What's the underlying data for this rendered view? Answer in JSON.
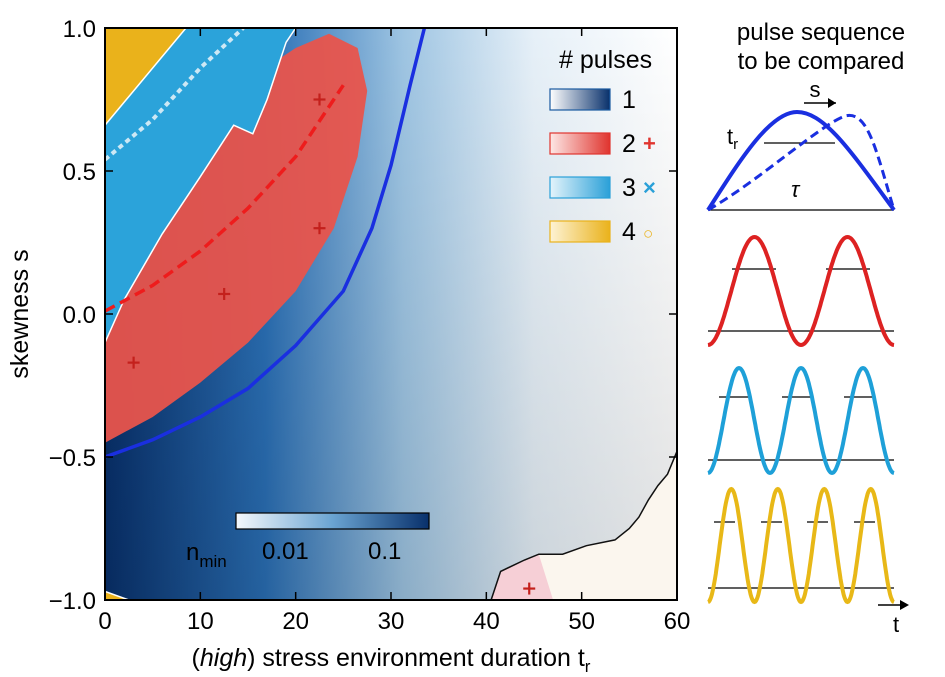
{
  "chart_data": {
    "type": "heatmap",
    "xlabel_prefix": "(",
    "xlabel_italic": "high",
    "xlabel_suffix": ") stress environment duration t",
    "xlabel_subscript": "r",
    "ylabel": "skewness s",
    "xlim": [
      0,
      60
    ],
    "ylim": [
      -1.0,
      1.0
    ],
    "xticks": [
      0,
      10,
      20,
      30,
      40,
      50,
      60
    ],
    "xtick_labels": [
      "0",
      "10",
      "20",
      "30",
      "40",
      "50",
      "60"
    ],
    "yticks": [
      1.0,
      0.5,
      0.0,
      -0.5,
      -1.0
    ],
    "ytick_labels": [
      "1.0",
      "0.5",
      "0.0",
      "−0.5",
      "−1.0"
    ],
    "legend": {
      "title": "# pulses",
      "position": "top-right",
      "entries": [
        {
          "label": "1",
          "color": "#1a5aa0",
          "marker": ""
        },
        {
          "label": "2",
          "color": "#e0342e",
          "marker": "+"
        },
        {
          "label": "3",
          "color": "#2aa0d8",
          "marker": "×"
        },
        {
          "label": "4",
          "color": "#eab21b",
          "marker": "○"
        }
      ]
    },
    "colorbar": {
      "label_main": "n",
      "label_sub": "min",
      "ticks": [
        "0.01",
        "0.1"
      ]
    },
    "boundary_1_2": [
      {
        "x": 0,
        "y": -0.5
      },
      {
        "x": 5,
        "y": -0.44
      },
      {
        "x": 10,
        "y": -0.36
      },
      {
        "x": 15,
        "y": -0.26
      },
      {
        "x": 20,
        "y": -0.11
      },
      {
        "x": 25,
        "y": 0.08
      },
      {
        "x": 28,
        "y": 0.3
      },
      {
        "x": 30,
        "y": 0.52
      },
      {
        "x": 32,
        "y": 0.8
      },
      {
        "x": 33.5,
        "y": 1.0
      }
    ],
    "optimal_skew_2": [
      {
        "x": 0,
        "y": 0.01
      },
      {
        "x": 5,
        "y": 0.1
      },
      {
        "x": 10,
        "y": 0.22
      },
      {
        "x": 15,
        "y": 0.37
      },
      {
        "x": 20,
        "y": 0.55
      },
      {
        "x": 25,
        "y": 0.8
      }
    ],
    "optimal_skew_3": [
      {
        "x": 0,
        "y": 0.54
      },
      {
        "x": 5,
        "y": 0.68
      },
      {
        "x": 10,
        "y": 0.86
      },
      {
        "x": 14.5,
        "y": 1.0
      }
    ],
    "region_2": [
      {
        "x": 0,
        "y": -0.45
      },
      {
        "x": 5,
        "y": -0.36
      },
      {
        "x": 10,
        "y": -0.24
      },
      {
        "x": 15,
        "y": -0.1
      },
      {
        "x": 20,
        "y": 0.08
      },
      {
        "x": 24,
        "y": 0.3
      },
      {
        "x": 26.5,
        "y": 0.55
      },
      {
        "x": 27.5,
        "y": 0.78
      },
      {
        "x": 26.5,
        "y": 0.93
      },
      {
        "x": 23.5,
        "y": 0.98
      },
      {
        "x": 20,
        "y": 0.93
      },
      {
        "x": 15,
        "y": 0.82
      },
      {
        "x": 10,
        "y": 0.65
      },
      {
        "x": 5,
        "y": 0.44
      },
      {
        "x": 0,
        "y": 0.24
      }
    ],
    "region_3": [
      {
        "x": 0,
        "y": -0.1
      },
      {
        "x": 2,
        "y": 0.05
      },
      {
        "x": 6,
        "y": 0.28
      },
      {
        "x": 10,
        "y": 0.48
      },
      {
        "x": 13.5,
        "y": 0.66
      },
      {
        "x": 15.5,
        "y": 0.63
      },
      {
        "x": 17,
        "y": 0.75
      },
      {
        "x": 19,
        "y": 0.95
      },
      {
        "x": 20,
        "y": 1.0
      },
      {
        "x": 0,
        "y": 1.0
      }
    ],
    "region_4_top": [
      {
        "x": 0,
        "y": 1.0
      },
      {
        "x": 8.5,
        "y": 1.0
      },
      {
        "x": 0,
        "y": 0.66
      }
    ],
    "region_4_bottom": [
      {
        "x": 0,
        "y": -1.0
      },
      {
        "x": 0,
        "y": -0.97
      },
      {
        "x": 2.5,
        "y": -1.0
      }
    ],
    "markers_2": [
      {
        "x": 3,
        "y": -0.17
      },
      {
        "x": 12.5,
        "y": 0.07
      },
      {
        "x": 22.5,
        "y": 0.3
      },
      {
        "x": 22.5,
        "y": 0.75
      },
      {
        "x": 44.5,
        "y": -0.96
      }
    ],
    "edge_contour": [
      {
        "x": 40.5,
        "y": -1.0
      },
      {
        "x": 41.5,
        "y": -0.9
      },
      {
        "x": 44,
        "y": -0.86
      },
      {
        "x": 45.5,
        "y": -0.84
      },
      {
        "x": 48,
        "y": -0.84
      },
      {
        "x": 50.5,
        "y": -0.81
      },
      {
        "x": 53.5,
        "y": -0.79
      },
      {
        "x": 55,
        "y": -0.75
      },
      {
        "x": 56,
        "y": -0.71
      },
      {
        "x": 57,
        "y": -0.65
      },
      {
        "x": 58,
        "y": -0.6
      },
      {
        "x": 59,
        "y": -0.56
      },
      {
        "x": 60,
        "y": -0.48
      }
    ]
  },
  "sequences": {
    "title_line1": "pulse sequence",
    "title_line2": "to be compared",
    "label_tr": "t",
    "label_tr_sub": "r",
    "label_s": "s",
    "label_tau": "τ",
    "label_t": "t",
    "colors": {
      "one": "#1a2fe0",
      "two": "#dd2222",
      "three": "#1ea0d8",
      "four": "#e8b817"
    }
  }
}
